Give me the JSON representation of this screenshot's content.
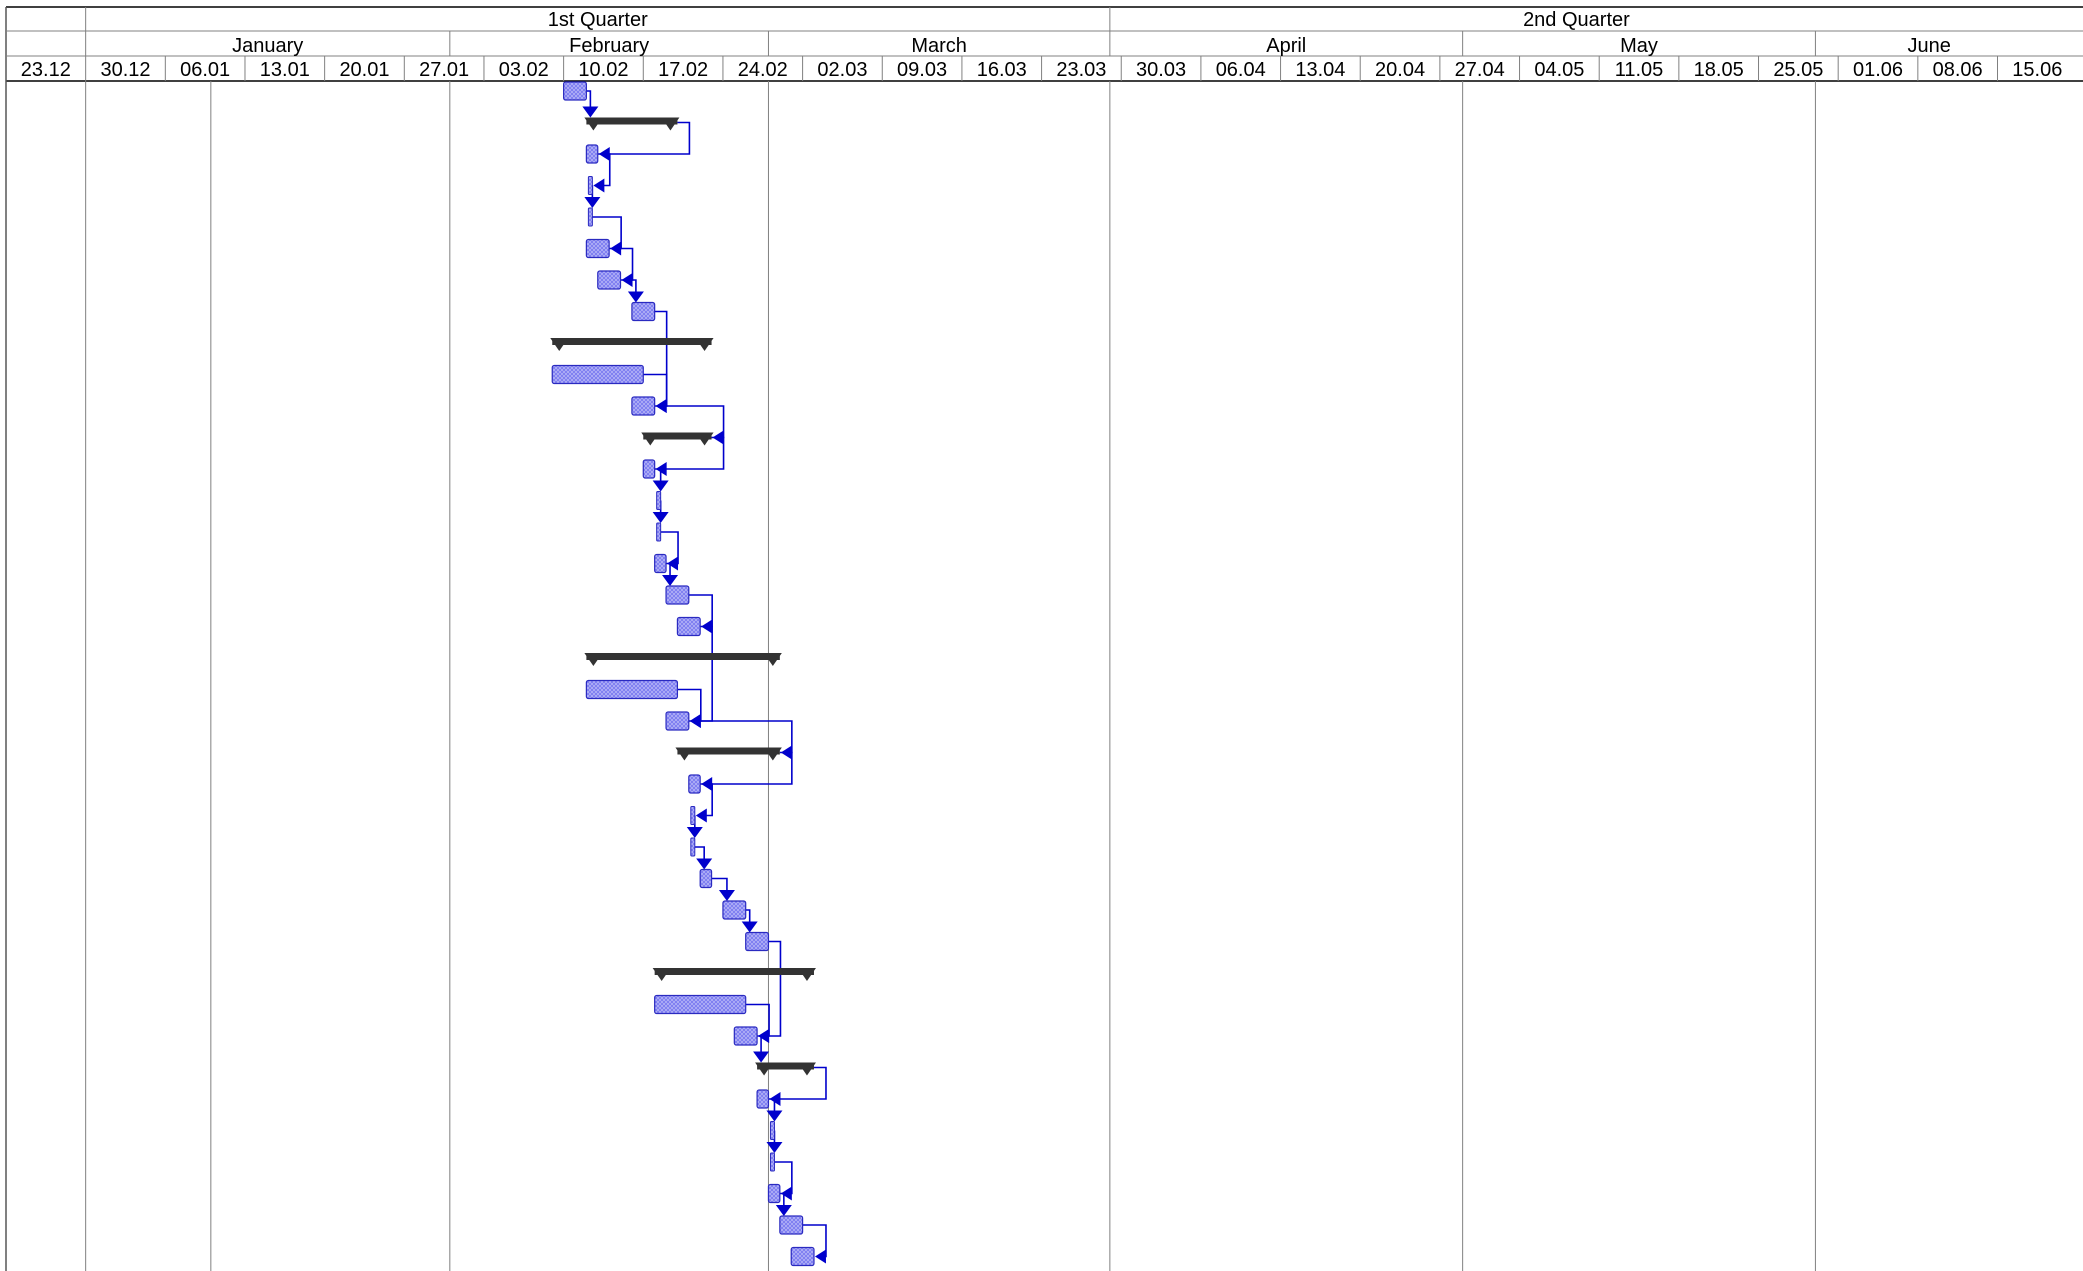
{
  "colors": {
    "task_fill": "#7b7bf0",
    "task_stroke": "#2a2ac0",
    "link": "#0000cc",
    "summary": "#333333",
    "grid": "#000000"
  },
  "header": {
    "quarters": [
      {
        "label": "",
        "start": "2013-12-23",
        "end": "2013-12-30"
      },
      {
        "label": "1st Quarter",
        "start": "2013-12-30",
        "end": "2014-03-30"
      },
      {
        "label": "2nd Quarter",
        "start": "2014-03-30",
        "end": "2014-06-20"
      }
    ],
    "months": [
      {
        "label": "",
        "start": "2013-12-23",
        "end": "2013-12-30"
      },
      {
        "label": "January",
        "start": "2013-12-30",
        "end": "2014-01-31"
      },
      {
        "label": "February",
        "start": "2014-01-31",
        "end": "2014-02-28"
      },
      {
        "label": "March",
        "start": "2014-02-28",
        "end": "2014-03-30"
      },
      {
        "label": "April",
        "start": "2014-03-30",
        "end": "2014-04-30"
      },
      {
        "label": "May",
        "start": "2014-04-30",
        "end": "2014-05-31"
      },
      {
        "label": "June",
        "start": "2014-05-31",
        "end": "2014-06-20"
      }
    ],
    "weeks": [
      "23.12",
      "30.12",
      "06.01",
      "13.01",
      "20.01",
      "27.01",
      "03.02",
      "10.02",
      "17.02",
      "24.02",
      "02.03",
      "09.03",
      "16.03",
      "23.03",
      "30.03",
      "06.04",
      "13.04",
      "20.04",
      "27.04",
      "04.05",
      "11.05",
      "18.05",
      "25.05",
      "01.06",
      "08.06",
      "15.06"
    ]
  },
  "chart_data": {
    "type": "gantt",
    "x_axis": {
      "unit": "date",
      "range": [
        "2013-12-23",
        "2014-06-20"
      ],
      "tick_interval_days": 7
    },
    "tasks": [
      {
        "row": 1,
        "kind": "task",
        "start": "2014-02-10",
        "end": "2014-02-11"
      },
      {
        "row": 2,
        "kind": "summary",
        "start": "2014-02-12",
        "end": "2014-02-19"
      },
      {
        "row": 3,
        "kind": "task",
        "start": "2014-02-12",
        "end": "2014-02-12"
      },
      {
        "row": 4,
        "kind": "milestone-small",
        "start": "2014-02-12",
        "end": "2014-02-12"
      },
      {
        "row": 5,
        "kind": "milestone-small",
        "start": "2014-02-12",
        "end": "2014-02-12"
      },
      {
        "row": 6,
        "kind": "task",
        "start": "2014-02-12",
        "end": "2014-02-13"
      },
      {
        "row": 7,
        "kind": "task",
        "start": "2014-02-13",
        "end": "2014-02-14"
      },
      {
        "row": 8,
        "kind": "task",
        "start": "2014-02-16",
        "end": "2014-02-17"
      },
      {
        "row": 9,
        "kind": "summary",
        "start": "2014-02-09",
        "end": "2014-02-22"
      },
      {
        "row": 10,
        "kind": "task",
        "start": "2014-02-09",
        "end": "2014-02-16"
      },
      {
        "row": 11,
        "kind": "task",
        "start": "2014-02-16",
        "end": "2014-02-17"
      },
      {
        "row": 12,
        "kind": "summary",
        "start": "2014-02-17",
        "end": "2014-02-22"
      },
      {
        "row": 13,
        "kind": "task",
        "start": "2014-02-17",
        "end": "2014-02-17"
      },
      {
        "row": 14,
        "kind": "milestone-small",
        "start": "2014-02-18",
        "end": "2014-02-18"
      },
      {
        "row": 15,
        "kind": "milestone-small",
        "start": "2014-02-18",
        "end": "2014-02-18"
      },
      {
        "row": 16,
        "kind": "task",
        "start": "2014-02-18",
        "end": "2014-02-18"
      },
      {
        "row": 17,
        "kind": "task",
        "start": "2014-02-19",
        "end": "2014-02-20"
      },
      {
        "row": 18,
        "kind": "task",
        "start": "2014-02-20",
        "end": "2014-02-21"
      },
      {
        "row": 19,
        "kind": "summary",
        "start": "2014-02-12",
        "end": "2014-02-28"
      },
      {
        "row": 20,
        "kind": "task",
        "start": "2014-02-12",
        "end": "2014-02-19"
      },
      {
        "row": 21,
        "kind": "task",
        "start": "2014-02-19",
        "end": "2014-02-20"
      },
      {
        "row": 22,
        "kind": "summary",
        "start": "2014-02-20",
        "end": "2014-02-28"
      },
      {
        "row": 23,
        "kind": "task",
        "start": "2014-02-21",
        "end": "2014-02-21"
      },
      {
        "row": 24,
        "kind": "milestone-small",
        "start": "2014-02-21",
        "end": "2014-02-21"
      },
      {
        "row": 25,
        "kind": "milestone-small",
        "start": "2014-02-21",
        "end": "2014-02-21"
      },
      {
        "row": 26,
        "kind": "task",
        "start": "2014-02-22",
        "end": "2014-02-22"
      },
      {
        "row": 27,
        "kind": "task",
        "start": "2014-02-24",
        "end": "2014-02-25"
      },
      {
        "row": 28,
        "kind": "task",
        "start": "2014-02-26",
        "end": "2014-02-27"
      },
      {
        "row": 29,
        "kind": "summary",
        "start": "2014-02-18",
        "end": "2014-03-03"
      },
      {
        "row": 30,
        "kind": "task",
        "start": "2014-02-18",
        "end": "2014-02-25"
      },
      {
        "row": 31,
        "kind": "task",
        "start": "2014-02-25",
        "end": "2014-02-26"
      },
      {
        "row": 32,
        "kind": "summary",
        "start": "2014-02-27",
        "end": "2014-03-03"
      },
      {
        "row": 33,
        "kind": "task",
        "start": "2014-02-27",
        "end": "2014-02-27"
      },
      {
        "row": 34,
        "kind": "milestone-small",
        "start": "2014-02-28",
        "end": "2014-02-28"
      },
      {
        "row": 35,
        "kind": "milestone-small",
        "start": "2014-02-28",
        "end": "2014-02-28"
      },
      {
        "row": 36,
        "kind": "task",
        "start": "2014-02-28",
        "end": "2014-02-28"
      },
      {
        "row": 37,
        "kind": "task",
        "start": "2014-03-01",
        "end": "2014-03-02"
      },
      {
        "row": 38,
        "kind": "task",
        "start": "2014-03-02",
        "end": "2014-03-03"
      }
    ],
    "links": [
      [
        1,
        2
      ],
      [
        2,
        3
      ],
      [
        3,
        4
      ],
      [
        4,
        5
      ],
      [
        5,
        6
      ],
      [
        6,
        7
      ],
      [
        7,
        8
      ],
      [
        8,
        11
      ],
      [
        10,
        11
      ],
      [
        11,
        12
      ],
      [
        12,
        13
      ],
      [
        13,
        14
      ],
      [
        14,
        15
      ],
      [
        15,
        16
      ],
      [
        16,
        17
      ],
      [
        17,
        18
      ],
      [
        18,
        21
      ],
      [
        20,
        21
      ],
      [
        21,
        22
      ],
      [
        22,
        23
      ],
      [
        23,
        24
      ],
      [
        24,
        25
      ],
      [
        25,
        26
      ],
      [
        26,
        27
      ],
      [
        27,
        28
      ],
      [
        28,
        31
      ],
      [
        30,
        31
      ],
      [
        31,
        32
      ],
      [
        32,
        33
      ],
      [
        33,
        34
      ],
      [
        34,
        35
      ],
      [
        35,
        36
      ],
      [
        36,
        37
      ],
      [
        37,
        38
      ]
    ]
  }
}
